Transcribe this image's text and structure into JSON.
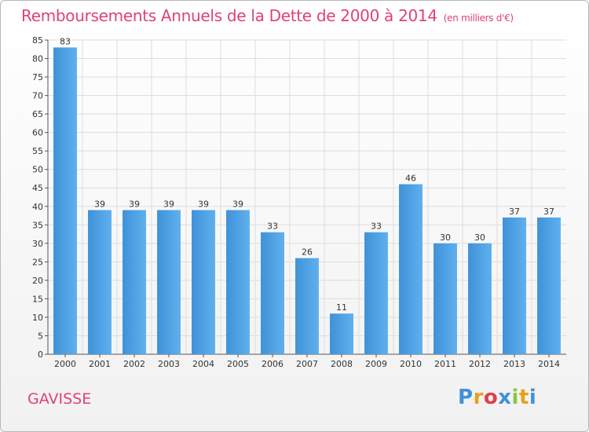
{
  "chart_data": {
    "type": "bar",
    "title": "Remboursements Annuels de la Dette de 2000 à 2014",
    "subtitle": "(en milliers d'€)",
    "categories": [
      "2000",
      "2001",
      "2002",
      "2003",
      "2004",
      "2005",
      "2006",
      "2007",
      "2008",
      "2009",
      "2010",
      "2011",
      "2012",
      "2013",
      "2014"
    ],
    "values": [
      83,
      39,
      39,
      39,
      39,
      39,
      33,
      26,
      11,
      33,
      46,
      30,
      30,
      37,
      37
    ],
    "ylim": [
      0,
      85
    ],
    "yticks": [
      0,
      5,
      10,
      15,
      20,
      25,
      30,
      35,
      40,
      45,
      50,
      55,
      60,
      65,
      70,
      75,
      80,
      85
    ],
    "grid": true,
    "bar_color": "#3f92d8",
    "bar_color_light": "#5fb0ee",
    "grid_color": "#dddddd"
  },
  "footer": {
    "commune": "GAVISSE",
    "logo_letters": [
      "P",
      "r",
      "o",
      "x",
      "i",
      "t",
      "i"
    ],
    "logo_colors": [
      "#3f92d8",
      "#e7a020",
      "#e04048",
      "#3f92d8",
      "#8cc63f",
      "#e7a020",
      "#3f92d8"
    ]
  }
}
